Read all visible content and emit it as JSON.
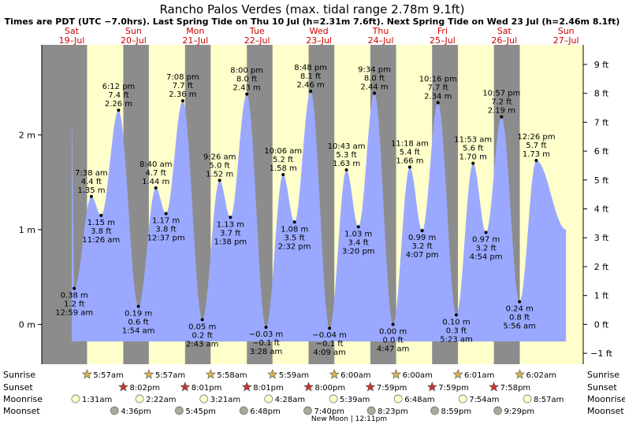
{
  "title": "Rancho Palos Verdes (max. tidal range 2.78m 9.1ft)",
  "subtitle": "Times are PDT (UTC −7.0hrs). Last Spring Tide on Thu 10 Jul (h=2.31m 7.6ft). Next Spring Tide on Wed 23 Jul (h=2.46m 8.1ft)",
  "colors": {
    "night": "#8c8c8c",
    "day": "#ffffcc",
    "water": "#9aa9ff",
    "day_label": "#cc0000",
    "sunrise_star": "#d9b04a",
    "sunset_star": "#cc3333",
    "moonrise": "#ffffcc",
    "moonset": "#aaaa99"
  },
  "days": [
    {
      "dow": "Sat",
      "date": "19–Jul"
    },
    {
      "dow": "Sun",
      "date": "20–Jul"
    },
    {
      "dow": "Mon",
      "date": "21–Jul"
    },
    {
      "dow": "Tue",
      "date": "22–Jul"
    },
    {
      "dow": "Wed",
      "date": "23–Jul"
    },
    {
      "dow": "Thu",
      "date": "24–Jul"
    },
    {
      "dow": "Fri",
      "date": "25–Jul"
    },
    {
      "dow": "Sat",
      "date": "26–Jul"
    },
    {
      "dow": "Sun",
      "date": "27–Jul"
    }
  ],
  "chart_data": {
    "type": "area",
    "y_left": {
      "ticks": [
        "0 m",
        "1 m",
        "2 m"
      ],
      "values_m": [
        0,
        1,
        2
      ]
    },
    "y_right": {
      "ticks": [
        "−1 ft",
        "0 ft",
        "1 ft",
        "2 ft",
        "3 ft",
        "4 ft",
        "5 ft",
        "6 ft",
        "7 ft",
        "8 ft",
        "9 ft"
      ],
      "values_ft": [
        -1,
        0,
        1,
        2,
        3,
        4,
        5,
        6,
        7,
        8,
        9
      ]
    },
    "ylim_m": [
      -0.42,
      2.95
    ],
    "extremes": [
      {
        "day": 0,
        "time": "12:59 am",
        "m": "0.38 m",
        "ft": "1.2 ft",
        "value": 0.38,
        "type": "low"
      },
      {
        "day": 0,
        "time": "7:38 am",
        "m": "1.35 m",
        "ft": "4.4 ft",
        "value": 1.35,
        "type": "high"
      },
      {
        "day": 0,
        "time": "11:26 am",
        "m": "1.15 m",
        "ft": "3.8 ft",
        "value": 1.15,
        "type": "low"
      },
      {
        "day": 0,
        "time": "6:12 pm",
        "m": "2.26 m",
        "ft": "7.4 ft",
        "value": 2.26,
        "type": "high"
      },
      {
        "day": 1,
        "time": "1:54 am",
        "m": "0.19 m",
        "ft": "0.6 ft",
        "value": 0.19,
        "type": "low"
      },
      {
        "day": 1,
        "time": "8:40 am",
        "m": "1.44 m",
        "ft": "4.7 ft",
        "value": 1.44,
        "type": "high"
      },
      {
        "day": 1,
        "time": "12:37 pm",
        "m": "1.17 m",
        "ft": "3.8 ft",
        "value": 1.17,
        "type": "low"
      },
      {
        "day": 1,
        "time": "7:08 pm",
        "m": "2.36 m",
        "ft": "7.7 ft",
        "value": 2.36,
        "type": "high"
      },
      {
        "day": 2,
        "time": "2:43 am",
        "m": "0.05 m",
        "ft": "0.2 ft",
        "value": 0.05,
        "type": "low"
      },
      {
        "day": 2,
        "time": "9:26 am",
        "m": "1.52 m",
        "ft": "5.0 ft",
        "value": 1.52,
        "type": "high"
      },
      {
        "day": 2,
        "time": "1:38 pm",
        "m": "1.13 m",
        "ft": "3.7 ft",
        "value": 1.13,
        "type": "low"
      },
      {
        "day": 2,
        "time": "8:00 pm",
        "m": "2.43 m",
        "ft": "8.0 ft",
        "value": 2.43,
        "type": "high"
      },
      {
        "day": 3,
        "time": "3:28 am",
        "m": "−0.03 m",
        "ft": "−0.1 ft",
        "value": -0.03,
        "type": "low"
      },
      {
        "day": 3,
        "time": "10:06 am",
        "m": "1.58 m",
        "ft": "5.2 ft",
        "value": 1.58,
        "type": "high"
      },
      {
        "day": 3,
        "time": "2:32 pm",
        "m": "1.08 m",
        "ft": "3.5 ft",
        "value": 1.08,
        "type": "low"
      },
      {
        "day": 3,
        "time": "8:48 pm",
        "m": "2.46 m",
        "ft": "8.1 ft",
        "value": 2.46,
        "type": "high"
      },
      {
        "day": 4,
        "time": "4:09 am",
        "m": "−0.04 m",
        "ft": "−0.1 ft",
        "value": -0.04,
        "type": "low"
      },
      {
        "day": 4,
        "time": "10:43 am",
        "m": "1.63 m",
        "ft": "5.3 ft",
        "value": 1.63,
        "type": "high"
      },
      {
        "day": 4,
        "time": "3:20 pm",
        "m": "1.03 m",
        "ft": "3.4 ft",
        "value": 1.03,
        "type": "low"
      },
      {
        "day": 4,
        "time": "9:34 pm",
        "m": "2.44 m",
        "ft": "8.0 ft",
        "value": 2.44,
        "type": "high"
      },
      {
        "day": 5,
        "time": "4:47 am",
        "m": "0.00 m",
        "ft": "0.0 ft",
        "value": 0.0,
        "type": "low"
      },
      {
        "day": 5,
        "time": "11:18 am",
        "m": "1.66 m",
        "ft": "5.4 ft",
        "value": 1.66,
        "type": "high"
      },
      {
        "day": 5,
        "time": "4:07 pm",
        "m": "0.99 m",
        "ft": "3.2 ft",
        "value": 0.99,
        "type": "low"
      },
      {
        "day": 5,
        "time": "10:16 pm",
        "m": "2.34 m",
        "ft": "7.7 ft",
        "value": 2.34,
        "type": "high"
      },
      {
        "day": 6,
        "time": "5:23 am",
        "m": "0.10 m",
        "ft": "0.3 ft",
        "value": 0.1,
        "type": "low"
      },
      {
        "day": 6,
        "time": "11:53 am",
        "m": "1.70 m",
        "ft": "5.6 ft",
        "value": 1.7,
        "type": "high"
      },
      {
        "day": 6,
        "time": "4:54 pm",
        "m": "0.97 m",
        "ft": "3.2 ft",
        "value": 0.97,
        "type": "low"
      },
      {
        "day": 6,
        "time": "10:57 pm",
        "m": "2.19 m",
        "ft": "7.2 ft",
        "value": 2.19,
        "type": "high"
      },
      {
        "day": 7,
        "time": "5:56 am",
        "m": "0.24 m",
        "ft": "0.8 ft",
        "value": 0.24,
        "type": "low"
      },
      {
        "day": 7,
        "time": "12:26 pm",
        "m": "1.73 m",
        "ft": "5.7 ft",
        "value": 1.73,
        "type": "high"
      }
    ],
    "series_start": {
      "day": 0,
      "minutes": 0,
      "value": 2.12
    },
    "series_end": {
      "day": 7,
      "minutes": 1440,
      "value": 1.0
    }
  },
  "rows": {
    "labels": [
      "Sunrise",
      "Sunset",
      "Moonrise",
      "Moonset"
    ],
    "sunrise": [
      {
        "day": 0,
        "time": "5:57am"
      },
      {
        "day": 1,
        "time": "5:57am"
      },
      {
        "day": 2,
        "time": "5:58am"
      },
      {
        "day": 3,
        "time": "5:59am"
      },
      {
        "day": 4,
        "time": "6:00am"
      },
      {
        "day": 5,
        "time": "6:00am"
      },
      {
        "day": 6,
        "time": "6:01am"
      },
      {
        "day": 7,
        "time": "6:02am"
      }
    ],
    "sunset": [
      {
        "day": 0,
        "time": "8:02pm"
      },
      {
        "day": 1,
        "time": "8:01pm"
      },
      {
        "day": 2,
        "time": "8:01pm"
      },
      {
        "day": 3,
        "time": "8:00pm"
      },
      {
        "day": 4,
        "time": "7:59pm"
      },
      {
        "day": 5,
        "time": "7:59pm"
      },
      {
        "day": 6,
        "time": "7:58pm"
      }
    ],
    "moonrise": [
      {
        "day": 0,
        "time": "1:31am"
      },
      {
        "day": 1,
        "time": "2:22am"
      },
      {
        "day": 2,
        "time": "3:21am"
      },
      {
        "day": 3,
        "time": "4:28am"
      },
      {
        "day": 4,
        "time": "5:39am"
      },
      {
        "day": 5,
        "time": "6:48am"
      },
      {
        "day": 6,
        "time": "7:54am"
      },
      {
        "day": 7,
        "time": "8:57am"
      }
    ],
    "moonset": [
      {
        "day": 0,
        "time": "4:36pm"
      },
      {
        "day": 1,
        "time": "5:45pm"
      },
      {
        "day": 2,
        "time": "6:48pm"
      },
      {
        "day": 3,
        "time": "7:40pm"
      },
      {
        "day": 4,
        "time": "8:23pm"
      },
      {
        "day": 5,
        "time": "8:59pm"
      },
      {
        "day": 6,
        "time": "9:29pm"
      }
    ],
    "moon_phase": "New Moon | 12:11pm"
  }
}
